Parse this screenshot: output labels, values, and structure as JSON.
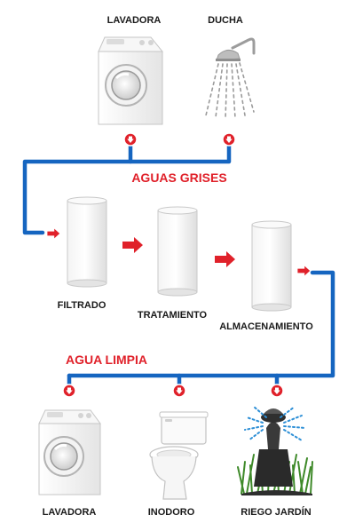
{
  "sources": [
    {
      "label": "LAVADORA",
      "icon": "washing-machine-icon"
    },
    {
      "label": "DUCHA",
      "icon": "shower-icon"
    }
  ],
  "grey_water_label": "AGUAS GRISES",
  "stages": [
    {
      "label": "FILTRADO",
      "icon": "tank-icon"
    },
    {
      "label": "TRATAMIENTO",
      "icon": "tank-icon"
    },
    {
      "label": "ALMACENAMIENTO",
      "icon": "tank-icon"
    }
  ],
  "clean_water_label": "AGUA LIMPIA",
  "destinations": [
    {
      "label": "LAVADORA",
      "icon": "washing-machine-icon"
    },
    {
      "label": "INODORO",
      "icon": "toilet-icon"
    },
    {
      "label": "RIEGO JARDÍN",
      "icon": "sprinkler-icon"
    }
  ],
  "colors": {
    "pipe": "#1565c0",
    "arrow": "#e0212a",
    "text": "#1a1a1a",
    "tank_edge": "#c9c9c9",
    "grass": "#3f8a2a"
  }
}
